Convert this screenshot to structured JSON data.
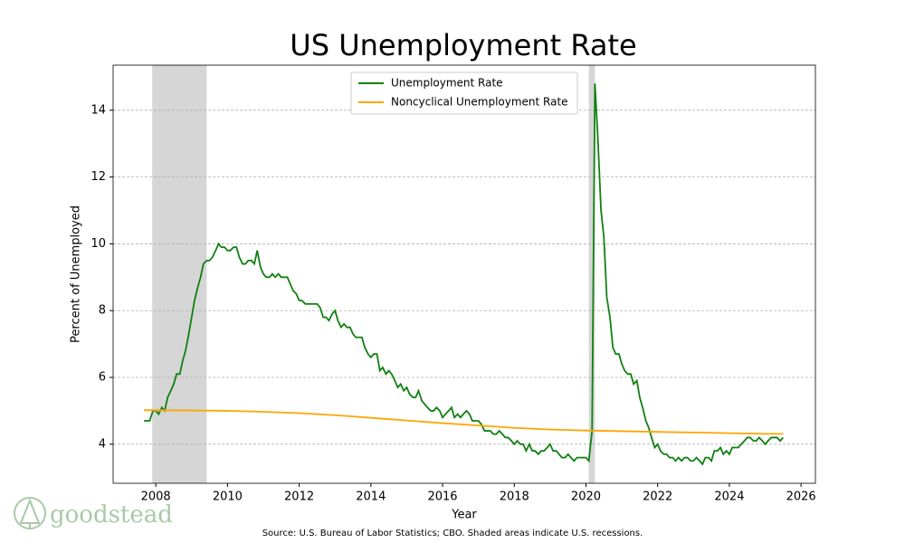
{
  "chart_data": {
    "type": "line",
    "title": "US Unemployment Rate",
    "xlabel": "Year",
    "ylabel": "Percent of Unemployed",
    "source": "Source: U.S. Bureau of Labor Statistics; CBO. Shaded areas indicate U.S. recessions.",
    "logo": "goodstead",
    "xlim": [
      2006.81,
      2026.4
    ],
    "ylim": [
      2.83,
      15.35
    ],
    "xticks": [
      2008,
      2010,
      2012,
      2014,
      2016,
      2018,
      2020,
      2022,
      2024,
      2026
    ],
    "yticks": [
      4,
      6,
      8,
      10,
      12,
      14
    ],
    "grid": true,
    "legend": "upper center",
    "recession_color": "#d6d6d6",
    "recessions": [
      [
        2007.9,
        2009.42
      ],
      [
        2020.08,
        2020.25
      ]
    ],
    "series": [
      {
        "name": "Unemployment Rate",
        "color": "#118011",
        "x": [
          2007.67,
          2007.75,
          2007.83,
          2007.92,
          2008,
          2008.08,
          2008.17,
          2008.25,
          2008.33,
          2008.42,
          2008.5,
          2008.58,
          2008.67,
          2008.75,
          2008.83,
          2008.92,
          2009,
          2009.08,
          2009.17,
          2009.25,
          2009.33,
          2009.42,
          2009.5,
          2009.58,
          2009.67,
          2009.75,
          2009.83,
          2009.92,
          2010,
          2010.08,
          2010.17,
          2010.25,
          2010.33,
          2010.42,
          2010.5,
          2010.58,
          2010.67,
          2010.75,
          2010.83,
          2010.92,
          2011,
          2011.08,
          2011.17,
          2011.25,
          2011.33,
          2011.42,
          2011.5,
          2011.58,
          2011.67,
          2011.75,
          2011.83,
          2011.92,
          2012,
          2012.08,
          2012.17,
          2012.25,
          2012.33,
          2012.42,
          2012.5,
          2012.58,
          2012.67,
          2012.75,
          2012.83,
          2012.92,
          2013,
          2013.08,
          2013.17,
          2013.25,
          2013.33,
          2013.42,
          2013.5,
          2013.58,
          2013.67,
          2013.75,
          2013.83,
          2013.92,
          2014,
          2014.08,
          2014.17,
          2014.25,
          2014.33,
          2014.42,
          2014.5,
          2014.58,
          2014.67,
          2014.75,
          2014.83,
          2014.92,
          2015,
          2015.08,
          2015.17,
          2015.25,
          2015.33,
          2015.42,
          2015.5,
          2015.58,
          2015.67,
          2015.75,
          2015.83,
          2015.92,
          2016,
          2016.08,
          2016.17,
          2016.25,
          2016.33,
          2016.42,
          2016.5,
          2016.58,
          2016.67,
          2016.75,
          2016.83,
          2016.92,
          2017,
          2017.08,
          2017.17,
          2017.25,
          2017.33,
          2017.42,
          2017.5,
          2017.58,
          2017.67,
          2017.75,
          2017.83,
          2017.92,
          2018,
          2018.08,
          2018.17,
          2018.25,
          2018.33,
          2018.42,
          2018.5,
          2018.58,
          2018.67,
          2018.75,
          2018.83,
          2018.92,
          2019,
          2019.08,
          2019.17,
          2019.25,
          2019.33,
          2019.42,
          2019.5,
          2019.58,
          2019.67,
          2019.75,
          2019.83,
          2019.92,
          2020,
          2020.08,
          2020.17,
          2020.25,
          2020.33,
          2020.42,
          2020.5,
          2020.58,
          2020.67,
          2020.75,
          2020.83,
          2020.92,
          2021,
          2021.08,
          2021.17,
          2021.25,
          2021.33,
          2021.42,
          2021.5,
          2021.58,
          2021.67,
          2021.75,
          2021.83,
          2021.92,
          2022,
          2022.08,
          2022.17,
          2022.25,
          2022.33,
          2022.42,
          2022.5,
          2022.58,
          2022.67,
          2022.75,
          2022.83,
          2022.92,
          2023,
          2023.08,
          2023.17,
          2023.25,
          2023.33,
          2023.42,
          2023.5,
          2023.58,
          2023.67,
          2023.75,
          2023.83,
          2023.92,
          2024,
          2024.08,
          2024.17,
          2024.25,
          2024.33,
          2024.42,
          2024.5,
          2024.58,
          2024.67,
          2024.75,
          2024.83,
          2024.92,
          2025,
          2025.08,
          2025.17,
          2025.25,
          2025.33,
          2025.42,
          2025.5
        ],
        "values": [
          4.7,
          4.7,
          4.7,
          5.0,
          5.0,
          4.9,
          5.1,
          5.0,
          5.4,
          5.6,
          5.8,
          6.1,
          6.1,
          6.5,
          6.8,
          7.3,
          7.8,
          8.3,
          8.7,
          9.0,
          9.4,
          9.5,
          9.5,
          9.6,
          9.8,
          10.0,
          9.9,
          9.9,
          9.8,
          9.8,
          9.9,
          9.9,
          9.6,
          9.4,
          9.4,
          9.5,
          9.5,
          9.4,
          9.8,
          9.3,
          9.1,
          9.0,
          9.0,
          9.1,
          9.0,
          9.1,
          9.0,
          9.0,
          9.0,
          8.8,
          8.6,
          8.5,
          8.3,
          8.3,
          8.2,
          8.2,
          8.2,
          8.2,
          8.2,
          8.1,
          7.8,
          7.8,
          7.7,
          7.9,
          8.0,
          7.7,
          7.5,
          7.6,
          7.5,
          7.5,
          7.3,
          7.2,
          7.2,
          7.2,
          6.9,
          6.7,
          6.6,
          6.7,
          6.7,
          6.2,
          6.3,
          6.1,
          6.2,
          6.1,
          5.9,
          5.7,
          5.8,
          5.6,
          5.7,
          5.5,
          5.4,
          5.4,
          5.6,
          5.3,
          5.2,
          5.1,
          5.0,
          5.0,
          5.1,
          5.0,
          4.8,
          4.9,
          5.0,
          5.1,
          4.8,
          4.9,
          4.8,
          4.9,
          5.0,
          4.9,
          4.7,
          4.7,
          4.7,
          4.6,
          4.4,
          4.4,
          4.4,
          4.3,
          4.3,
          4.4,
          4.3,
          4.2,
          4.2,
          4.1,
          4.0,
          4.1,
          4.0,
          4.0,
          3.8,
          4.0,
          3.8,
          3.8,
          3.7,
          3.8,
          3.8,
          3.9,
          4.0,
          3.8,
          3.8,
          3.7,
          3.6,
          3.6,
          3.7,
          3.6,
          3.5,
          3.6,
          3.6,
          3.6,
          3.6,
          3.5,
          4.4,
          14.8,
          13.2,
          11.0,
          10.2,
          8.4,
          7.8,
          6.9,
          6.7,
          6.7,
          6.4,
          6.2,
          6.1,
          6.1,
          5.8,
          5.9,
          5.4,
          5.1,
          4.7,
          4.5,
          4.2,
          3.9,
          4.0,
          3.8,
          3.7,
          3.7,
          3.6,
          3.6,
          3.5,
          3.6,
          3.5,
          3.6,
          3.6,
          3.5,
          3.5,
          3.6,
          3.5,
          3.4,
          3.6,
          3.6,
          3.5,
          3.8,
          3.8,
          3.9,
          3.7,
          3.8,
          3.7,
          3.9,
          3.9,
          3.9,
          4.0,
          4.1,
          4.2,
          4.2,
          4.1,
          4.1,
          4.2,
          4.1,
          4.0,
          4.1,
          4.2,
          4.2,
          4.2,
          4.1,
          4.2
        ]
      },
      {
        "name": "Noncyclical Unemployment Rate",
        "color": "#ffa500",
        "x": [
          2007.67,
          2009,
          2010,
          2011,
          2012,
          2013,
          2014,
          2015,
          2016,
          2017,
          2018,
          2019,
          2020,
          2021,
          2022,
          2023,
          2024,
          2025,
          2025.5
        ],
        "values": [
          5.02,
          5.01,
          5.0,
          4.97,
          4.93,
          4.87,
          4.79,
          4.71,
          4.63,
          4.56,
          4.49,
          4.44,
          4.41,
          4.39,
          4.37,
          4.35,
          4.33,
          4.31,
          4.31
        ]
      }
    ]
  }
}
